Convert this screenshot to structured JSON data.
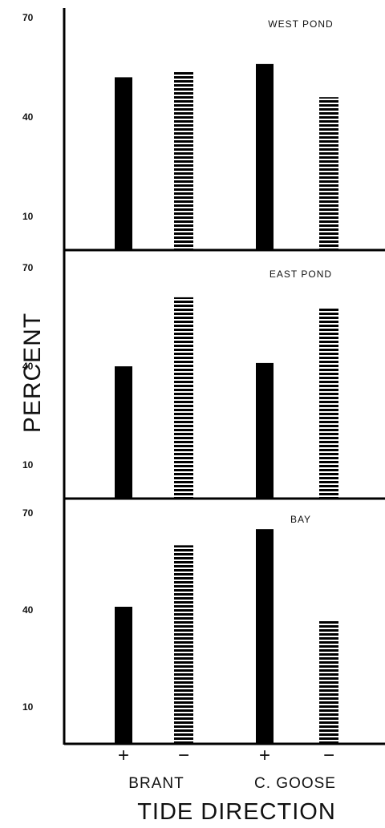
{
  "chart_data": {
    "type": "bar",
    "ylabel": "PERCENT",
    "xlabel": "TIDE DIRECTION",
    "yticks": [
      10,
      40,
      70
    ],
    "ylim": [
      0,
      72
    ],
    "species": [
      "BRANT",
      "C. GOOSE"
    ],
    "categories": [
      "+",
      "−",
      "+",
      "−"
    ],
    "legend": "none",
    "grid": false,
    "bar_styles": {
      "+": "solid black",
      "−": "horizontal hatched black"
    },
    "panels": [
      {
        "title": "WEST  POND",
        "values": [
          52,
          54,
          56,
          46
        ]
      },
      {
        "title": "EAST  POND",
        "values": [
          40,
          61,
          41,
          58
        ]
      },
      {
        "title": "BAY",
        "values": [
          41,
          60,
          65,
          37
        ]
      }
    ]
  }
}
